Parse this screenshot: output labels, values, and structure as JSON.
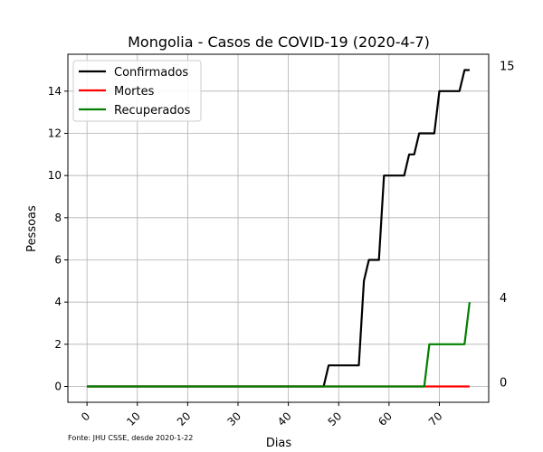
{
  "chart_data": {
    "type": "line",
    "title": "Mongolia - Casos de COVID-19 (2020-4-7)",
    "xlabel": "Dias",
    "ylabel": "Pessoas",
    "xlim": [
      -3.8,
      79.8
    ],
    "ylim": [
      -0.75,
      15.75
    ],
    "x_ticks": [
      0,
      10,
      20,
      30,
      40,
      50,
      60,
      70
    ],
    "y_ticks": [
      0,
      2,
      4,
      6,
      8,
      10,
      12,
      14
    ],
    "grid": true,
    "legend_position": "top-left",
    "right_labels": [
      {
        "value": 15,
        "label": "15"
      },
      {
        "value": 4,
        "label": "4"
      },
      {
        "value": 0,
        "label": "0"
      }
    ],
    "footnote": "Fonte: JHU CSSE, desde 2020-1-22",
    "series": [
      {
        "name": "Confirmados",
        "color": "#000000",
        "points": [
          [
            0,
            0
          ],
          [
            47,
            0
          ],
          [
            48,
            1
          ],
          [
            54,
            1
          ],
          [
            55,
            5
          ],
          [
            56,
            6
          ],
          [
            58,
            6
          ],
          [
            59,
            10
          ],
          [
            63,
            10
          ],
          [
            64,
            11
          ],
          [
            65,
            11
          ],
          [
            66,
            12
          ],
          [
            69,
            12
          ],
          [
            70,
            14
          ],
          [
            74,
            14
          ],
          [
            75,
            15
          ],
          [
            76,
            15
          ]
        ]
      },
      {
        "name": "Mortes",
        "color": "#ff0000",
        "points": [
          [
            0,
            0
          ],
          [
            76,
            0
          ]
        ]
      },
      {
        "name": "Recuperados",
        "color": "#008000",
        "points": [
          [
            0,
            0
          ],
          [
            67,
            0
          ],
          [
            68,
            2
          ],
          [
            75,
            2
          ],
          [
            76,
            4
          ]
        ]
      }
    ]
  }
}
